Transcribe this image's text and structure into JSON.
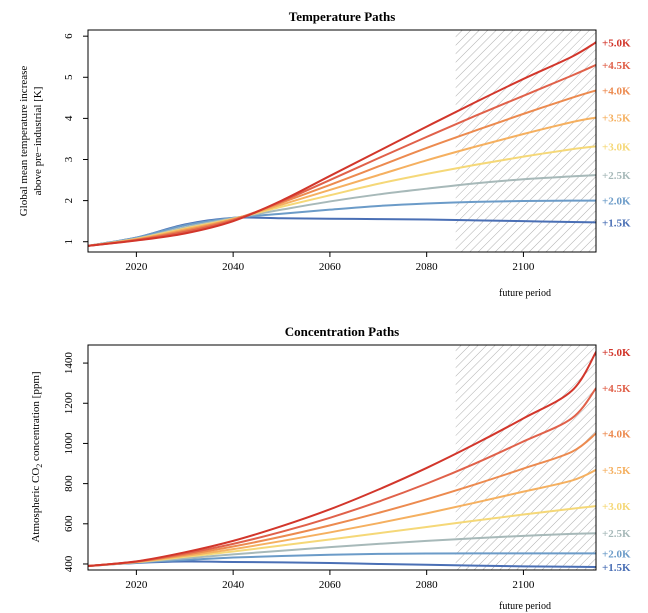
{
  "chart_data": [
    {
      "type": "line",
      "title": "Temperature Paths",
      "xlabel": "",
      "ylabel_lines": [
        "Global mean temperature increase",
        "above pre−industrial [K]"
      ],
      "xlim": [
        2010,
        2115
      ],
      "ylim": [
        0.75,
        6.15
      ],
      "xticks": [
        2020,
        2040,
        2060,
        2080,
        2100
      ],
      "yticks": [
        1,
        2,
        3,
        4,
        5,
        6
      ],
      "future_period": {
        "start": 2086,
        "end": 2115,
        "label": "future period"
      },
      "x": [
        2010,
        2020,
        2030,
        2040,
        2050,
        2060,
        2070,
        2080,
        2090,
        2100,
        2110,
        2115
      ],
      "series": [
        {
          "name": "+1.5K",
          "color": "#4a6fb5",
          "values": [
            0.9,
            1.1,
            1.42,
            1.58,
            1.57,
            1.56,
            1.55,
            1.54,
            1.52,
            1.5,
            1.48,
            1.47
          ]
        },
        {
          "name": "+2.0K",
          "color": "#6b9bc8",
          "values": [
            0.9,
            1.1,
            1.4,
            1.58,
            1.68,
            1.78,
            1.87,
            1.93,
            1.97,
            1.99,
            2.0,
            2.0
          ]
        },
        {
          "name": "+2.5K",
          "color": "#a7b9b9",
          "values": [
            0.9,
            1.08,
            1.35,
            1.57,
            1.78,
            1.98,
            2.15,
            2.29,
            2.42,
            2.52,
            2.59,
            2.62
          ]
        },
        {
          "name": "+3.0K",
          "color": "#f5d878",
          "values": [
            0.9,
            1.07,
            1.32,
            1.56,
            1.85,
            2.13,
            2.41,
            2.65,
            2.87,
            3.07,
            3.25,
            3.32
          ]
        },
        {
          "name": "+3.5K",
          "color": "#f5b060",
          "values": [
            0.9,
            1.06,
            1.3,
            1.55,
            1.9,
            2.26,
            2.62,
            2.98,
            3.31,
            3.62,
            3.91,
            4.02
          ]
        },
        {
          "name": "+4.0K",
          "color": "#ec8a4f",
          "values": [
            0.9,
            1.05,
            1.27,
            1.54,
            1.95,
            2.38,
            2.83,
            3.28,
            3.7,
            4.11,
            4.5,
            4.68
          ]
        },
        {
          "name": "+4.5K",
          "color": "#e0614a",
          "values": [
            0.9,
            1.04,
            1.24,
            1.52,
            1.98,
            2.5,
            3.03,
            3.55,
            4.06,
            4.55,
            5.04,
            5.3
          ]
        },
        {
          "name": "+5.0K",
          "color": "#d2362b",
          "values": [
            0.9,
            1.03,
            1.2,
            1.5,
            2.0,
            2.6,
            3.2,
            3.8,
            4.39,
            4.96,
            5.5,
            5.85
          ]
        }
      ]
    },
    {
      "type": "line",
      "title": "Concentration Paths",
      "xlabel": "",
      "ylabel": "Atmospheric CO",
      "ylabel_sub": "2",
      "ylabel_tail": " concentration [ppm]",
      "xlim": [
        2010,
        2115
      ],
      "ylim": [
        370,
        1490
      ],
      "xticks": [
        2020,
        2040,
        2060,
        2080,
        2100
      ],
      "yticks": [
        400,
        600,
        800,
        1000,
        1200,
        1400
      ],
      "future_period": {
        "start": 2086,
        "end": 2115,
        "label": "future period"
      },
      "x": [
        2010,
        2020,
        2030,
        2040,
        2050,
        2060,
        2070,
        2080,
        2090,
        2100,
        2110,
        2115
      ],
      "series": [
        {
          "name": "+1.5K",
          "color": "#4a6fb5",
          "values": [
            390,
            405,
            412,
            410,
            408,
            405,
            400,
            396,
            392,
            388,
            386,
            385
          ]
        },
        {
          "name": "+2.0K",
          "color": "#6b9bc8",
          "values": [
            390,
            407,
            420,
            432,
            440,
            446,
            450,
            452,
            453,
            453,
            453,
            453
          ]
        },
        {
          "name": "+2.5K",
          "color": "#a7b9b9",
          "values": [
            390,
            408,
            428,
            448,
            466,
            484,
            500,
            515,
            528,
            540,
            550,
            553
          ]
        },
        {
          "name": "+3.0K",
          "color": "#f5d878",
          "values": [
            390,
            409,
            435,
            462,
            492,
            522,
            553,
            584,
            616,
            646,
            675,
            688
          ]
        },
        {
          "name": "+3.5K",
          "color": "#f5b060",
          "values": [
            390,
            410,
            440,
            474,
            514,
            557,
            603,
            652,
            705,
            760,
            815,
            868
          ]
        },
        {
          "name": "+4.0K",
          "color": "#ec8a4f",
          "values": [
            390,
            411,
            446,
            487,
            536,
            592,
            654,
            722,
            796,
            875,
            958,
            1050
          ]
        },
        {
          "name": "+4.5K",
          "color": "#e0614a",
          "values": [
            390,
            412,
            452,
            500,
            560,
            630,
            710,
            800,
            900,
            1010,
            1125,
            1275
          ]
        },
        {
          "name": "+5.0K",
          "color": "#d2362b",
          "values": [
            390,
            413,
            458,
            515,
            588,
            672,
            770,
            878,
            997,
            1125,
            1262,
            1455
          ]
        }
      ]
    }
  ]
}
